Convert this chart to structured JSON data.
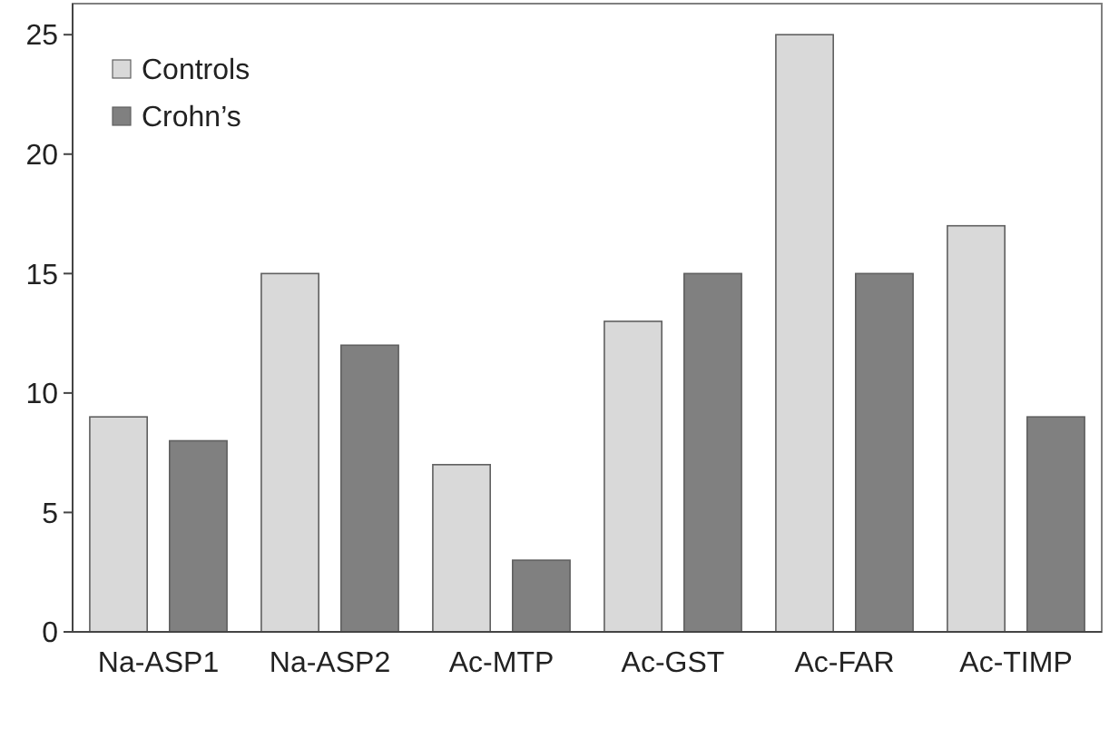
{
  "chart_data": {
    "type": "bar",
    "categories": [
      "Na-ASP1",
      "Na-ASP2",
      "Ac-MTP",
      "Ac-GST",
      "Ac-FAR",
      "Ac-TIMP"
    ],
    "series": [
      {
        "name": "Controls",
        "color": "#d9d9d9",
        "values": [
          9,
          15,
          7,
          13,
          25,
          17
        ]
      },
      {
        "name": "Crohn’s",
        "color": "#808080",
        "values": [
          8,
          12,
          3,
          15,
          15,
          9
        ]
      }
    ],
    "ylim": [
      0,
      26.3
    ],
    "yticks": [
      0,
      5,
      10,
      15,
      20,
      25
    ],
    "grid": false,
    "legend": "top left"
  }
}
